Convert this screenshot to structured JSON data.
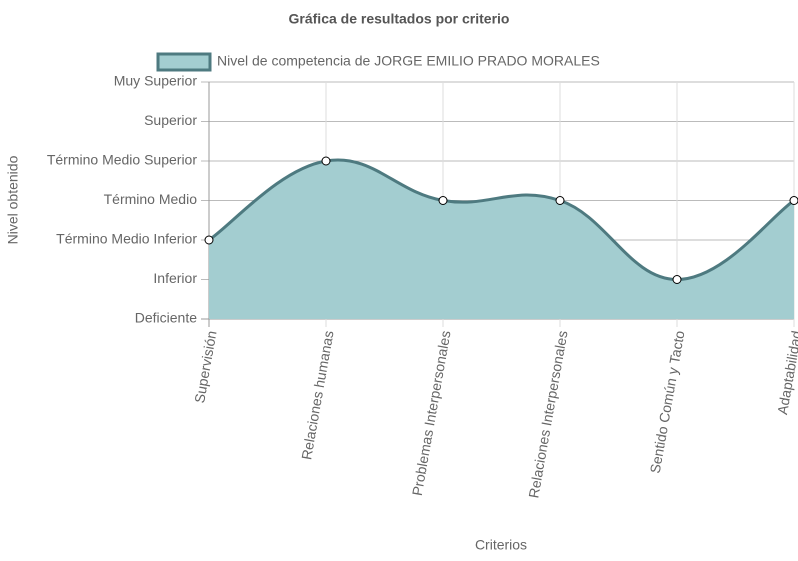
{
  "chart_data": {
    "type": "line",
    "title": "Gráfica de resultados por criterio",
    "xlabel": "Criterios",
    "ylabel": "Nivel obtenido",
    "categories": [
      "Supervisión",
      "Relaciones humanas",
      "Problemas Interpersonales",
      "Relaciones Interpersonales",
      "Sentido Común y Tacto",
      "Adaptabilidad"
    ],
    "series": [
      {
        "name": "Nivel de competencia de JORGE EMILIO PRADO MORALES",
        "color": "#4e7a80",
        "fill": "#a3cdd0",
        "values": [
          2,
          4,
          3,
          3,
          1,
          3
        ]
      }
    ],
    "ylim": [
      0,
      6
    ],
    "yticks": [
      {
        "value": 0,
        "label": "Deficiente"
      },
      {
        "value": 1,
        "label": "Inferior"
      },
      {
        "value": 2,
        "label": "Término Medio Inferior"
      },
      {
        "value": 3,
        "label": "Término Medio"
      },
      {
        "value": 4,
        "label": "Término Medio Superior"
      },
      {
        "value": 5,
        "label": "Superior"
      },
      {
        "value": 6,
        "label": "Muy Superior"
      }
    ],
    "grid": true,
    "legend": "top"
  }
}
